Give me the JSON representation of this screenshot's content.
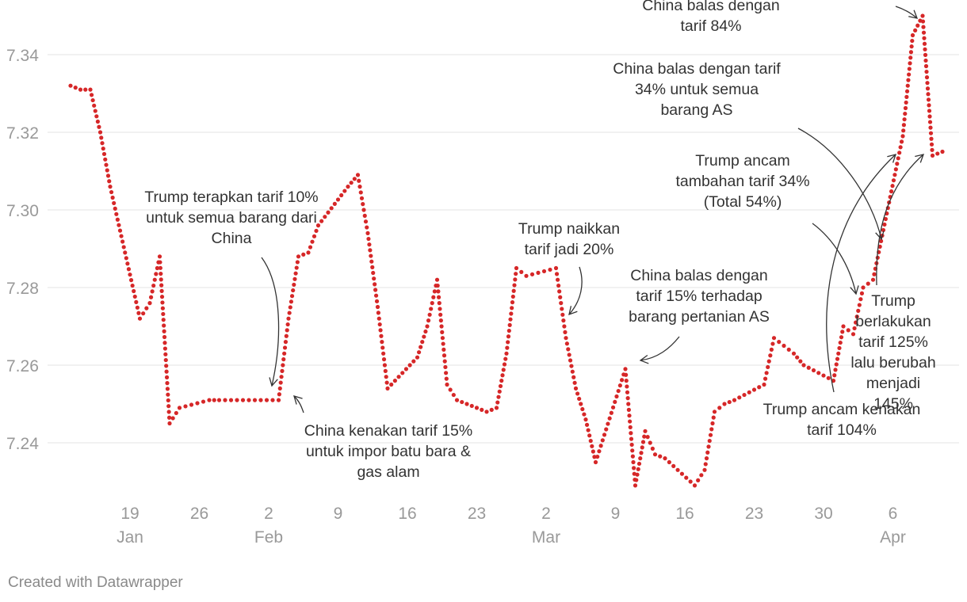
{
  "chart_data": {
    "type": "line",
    "title": "",
    "xlabel": "",
    "ylabel": "",
    "ylim": [
      7.222,
      7.354
    ],
    "grid": true,
    "legend": "none",
    "line_color": "#d62728",
    "line_style": "dotted",
    "y_ticks": [
      "7.24",
      "7.26",
      "7.28",
      "7.30",
      "7.32",
      "7.34"
    ],
    "y_tick_values": [
      7.24,
      7.26,
      7.28,
      7.3,
      7.32,
      7.34
    ],
    "x_ticks": [
      {
        "date": "2025-01-19",
        "day": "19",
        "month": "Jan"
      },
      {
        "date": "2025-01-26",
        "day": "26",
        "month": ""
      },
      {
        "date": "2025-02-02",
        "day": "2",
        "month": "Feb"
      },
      {
        "date": "2025-02-09",
        "day": "9",
        "month": ""
      },
      {
        "date": "2025-02-16",
        "day": "16",
        "month": ""
      },
      {
        "date": "2025-02-23",
        "day": "23",
        "month": ""
      },
      {
        "date": "2025-03-02",
        "day": "2",
        "month": "Mar"
      },
      {
        "date": "2025-03-09",
        "day": "9",
        "month": ""
      },
      {
        "date": "2025-03-16",
        "day": "16",
        "month": ""
      },
      {
        "date": "2025-03-23",
        "day": "23",
        "month": ""
      },
      {
        "date": "2025-03-30",
        "day": "30",
        "month": ""
      },
      {
        "date": "2025-04-06",
        "day": "6",
        "month": "Apr"
      }
    ],
    "series": [
      {
        "x": [
          "2025-01-13",
          "2025-01-14",
          "2025-01-15",
          "2025-01-16",
          "2025-01-17",
          "2025-01-20",
          "2025-01-21",
          "2025-01-22",
          "2025-01-23",
          "2025-01-24",
          "2025-01-27",
          "2025-01-28",
          "2025-02-03",
          "2025-02-04",
          "2025-02-05",
          "2025-02-06",
          "2025-02-07",
          "2025-02-10",
          "2025-02-11",
          "2025-02-12",
          "2025-02-13",
          "2025-02-14",
          "2025-02-17",
          "2025-02-18",
          "2025-02-19",
          "2025-02-20",
          "2025-02-21",
          "2025-02-24",
          "2025-02-25",
          "2025-02-26",
          "2025-02-27",
          "2025-02-28",
          "2025-03-03",
          "2025-03-04",
          "2025-03-05",
          "2025-03-06",
          "2025-03-07",
          "2025-03-10",
          "2025-03-11",
          "2025-03-12",
          "2025-03-13",
          "2025-03-14",
          "2025-03-17",
          "2025-03-18",
          "2025-03-19",
          "2025-03-20",
          "2025-03-21",
          "2025-03-24",
          "2025-03-25",
          "2025-03-26",
          "2025-03-27",
          "2025-03-28",
          "2025-03-31",
          "2025-04-01",
          "2025-04-02",
          "2025-04-03",
          "2025-04-04",
          "2025-04-07",
          "2025-04-08",
          "2025-04-09",
          "2025-04-10",
          "2025-04-11"
        ],
        "values": [
          7.332,
          7.331,
          7.331,
          7.32,
          7.306,
          7.272,
          7.276,
          7.288,
          7.245,
          7.249,
          7.251,
          7.251,
          7.251,
          7.272,
          7.288,
          7.289,
          7.296,
          7.306,
          7.309,
          7.294,
          7.275,
          7.254,
          7.262,
          7.27,
          7.282,
          7.255,
          7.251,
          7.248,
          7.249,
          7.263,
          7.285,
          7.283,
          7.285,
          7.267,
          7.254,
          7.246,
          7.235,
          7.259,
          7.229,
          7.243,
          7.237,
          7.236,
          7.229,
          7.233,
          7.248,
          7.25,
          7.251,
          7.255,
          7.267,
          7.265,
          7.263,
          7.26,
          7.256,
          7.27,
          7.268,
          7.28,
          7.282,
          7.319,
          7.345,
          7.35,
          7.314,
          7.315
        ]
      }
    ],
    "annotations": [
      {
        "id": "a1",
        "lines": [
          "Trump terapkan tarif 10%",
          "untuk semua barang dari",
          "China"
        ]
      },
      {
        "id": "a2",
        "lines": [
          "China kenakan tarif 15%",
          "untuk impor batu bara &",
          "gas alam"
        ]
      },
      {
        "id": "a3",
        "lines": [
          "Trump naikkan",
          "tarif jadi 20%"
        ]
      },
      {
        "id": "a4",
        "lines": [
          "China balas dengan",
          "tarif 15% terhadap",
          "barang pertanian AS"
        ]
      },
      {
        "id": "a5",
        "lines": [
          "China balas dengan",
          "tarif 84%"
        ]
      },
      {
        "id": "a6",
        "lines": [
          "China balas dengan tarif",
          "34% untuk semua",
          "barang AS"
        ]
      },
      {
        "id": "a7",
        "lines": [
          "Trump ancam",
          "tambahan tarif 34%",
          "(Total 54%)"
        ]
      },
      {
        "id": "a8",
        "lines": [
          "Trump",
          "berlakukan",
          "tarif 125%",
          "lalu berubah",
          "menjadi",
          "145%"
        ]
      },
      {
        "id": "a9",
        "lines": [
          "Trump ancam kenakan",
          "tarif 104%"
        ]
      }
    ]
  },
  "footer": {
    "credit": "Created with Datawrapper"
  }
}
